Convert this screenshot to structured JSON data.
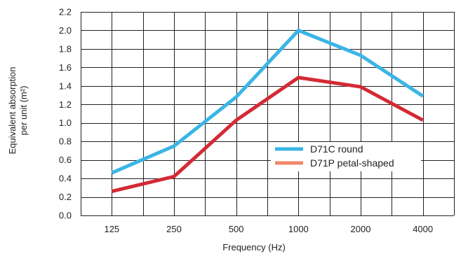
{
  "chart_data": {
    "type": "line",
    "categories": [
      "125",
      "250",
      "500",
      "1000",
      "2000",
      "4000"
    ],
    "series": [
      {
        "name": "D71C round",
        "values": [
          0.46,
          0.75,
          1.28,
          2.0,
          1.73,
          1.29
        ],
        "color": "#3ab5e6"
      },
      {
        "name": "D71P petal-shaped",
        "values": [
          0.26,
          0.42,
          1.03,
          1.49,
          1.39,
          1.03
        ],
        "color": "#d42a35"
      }
    ],
    "legend_swatch_colors": [
      "#3ab5e6",
      "#f0876a"
    ],
    "y_ticks": [
      "0.0",
      "0.2",
      "0.4",
      "0.6",
      "0.8",
      "1.0",
      "1.2",
      "1.4",
      "1.6",
      "1.8",
      "2.0",
      "2.2"
    ],
    "ylim": [
      0,
      2.2
    ],
    "title": "",
    "xlabel": "Frequency (Hz)",
    "ylabel_line1": "Equivalent absorption",
    "ylabel_line2": "per unit (m²)",
    "grid": true,
    "legend_position": "inside-lower-right"
  }
}
